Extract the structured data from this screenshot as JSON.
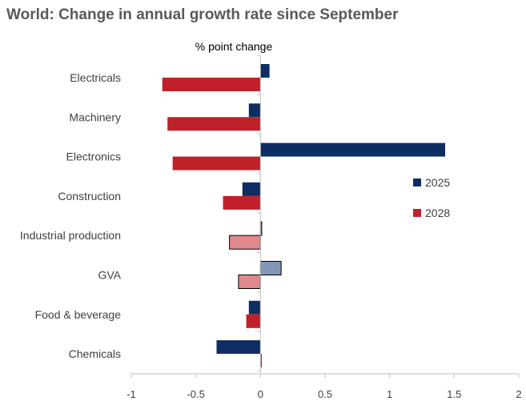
{
  "title": "World: Change in annual growth rate since September",
  "chart_data": {
    "type": "bar",
    "orientation": "horizontal",
    "title": "World: Change in annual growth rate since September",
    "xlabel": "%  point change",
    "ylabel": "",
    "xlim": [
      -1,
      2
    ],
    "xticks": [
      -1,
      -0.5,
      0,
      0.5,
      1,
      1.5,
      2
    ],
    "xtick_labels": [
      "-1",
      "-0.5",
      "0",
      "0.5",
      "1",
      "1.5",
      "2"
    ],
    "categories": [
      "Electricals",
      "Machinery",
      "Electronics",
      "Construction",
      "Industrial production",
      "GVA",
      "Food & beverage",
      "Chemicals"
    ],
    "highlighted_categories": [
      "Industrial production",
      "GVA"
    ],
    "series": [
      {
        "name": "2025",
        "color": "#0e2d63",
        "highlight_color": "#8497b8",
        "values": [
          0.07,
          -0.09,
          1.43,
          -0.14,
          0.01,
          0.16,
          -0.09,
          -0.34
        ]
      },
      {
        "name": "2028",
        "color": "#c0202a",
        "highlight_color": "#e0898c",
        "values": [
          -0.76,
          -0.72,
          -0.68,
          -0.29,
          -0.24,
          -0.17,
          -0.11,
          0.01
        ]
      }
    ],
    "legend_position": "right",
    "grid": false
  }
}
